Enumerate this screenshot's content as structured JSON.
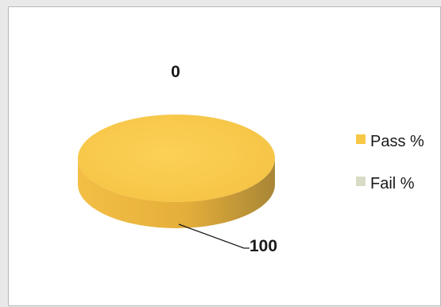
{
  "chart_data": {
    "type": "pie",
    "style": "3d",
    "categories": [
      "Pass %",
      "Fail %"
    ],
    "values": [
      100,
      0
    ],
    "data_labels": [
      "100",
      "0"
    ],
    "legend_position": "right",
    "colors": {
      "pass_top": "#f7c746",
      "pass_side": "#c89a2c",
      "fail": "#d7dcc4",
      "leader_line": "#1a1a1a"
    }
  }
}
